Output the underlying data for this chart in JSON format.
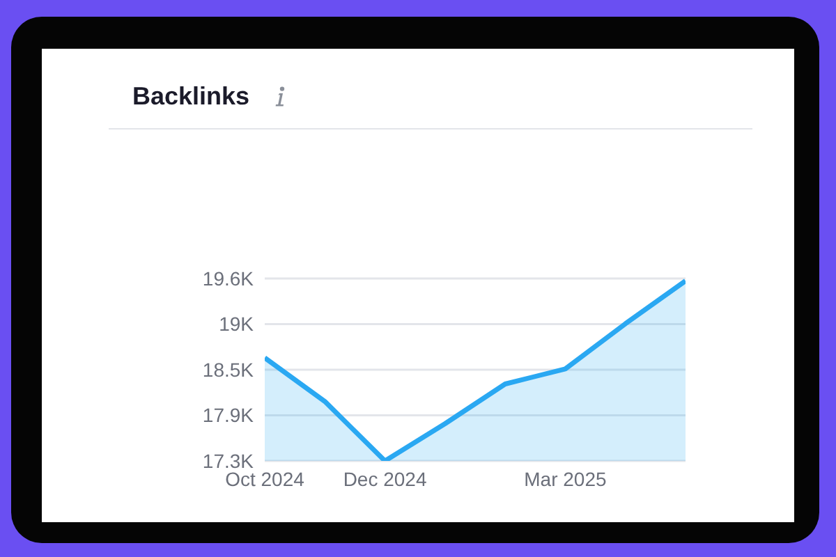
{
  "chart_data": {
    "type": "area",
    "title": "Backlinks",
    "x": [
      "2024-10",
      "2024-11",
      "2024-12",
      "2025-01",
      "2025-02",
      "2025-03",
      "2025-04",
      "2025-05"
    ],
    "series": [
      {
        "color": "#2aa8f2",
        "values": [
          18.6,
          18.05,
          17.3,
          17.77,
          18.27,
          18.46,
          19.03,
          19.57
        ]
      }
    ],
    "xlim": [
      "2024-10",
      "2025-05"
    ],
    "xticks": [
      {
        "value": "2024-10",
        "label": "Oct 2024"
      },
      {
        "value": "2024-12",
        "label": "Dec 2024"
      },
      {
        "value": "2025-03",
        "label": "Mar 2025"
      }
    ],
    "ylim": [
      17.3,
      19.6
    ],
    "yticks": [
      {
        "value": 17.3,
        "label": "17.3K"
      },
      {
        "value": 17.875,
        "label": "17.9K"
      },
      {
        "value": 18.45,
        "label": "18.5K"
      },
      {
        "value": 19.025,
        "label": "19K"
      },
      {
        "value": 19.6,
        "label": "19.6K"
      }
    ],
    "grid": "y",
    "legend": false,
    "marker": "none",
    "line_style": "solid"
  }
}
